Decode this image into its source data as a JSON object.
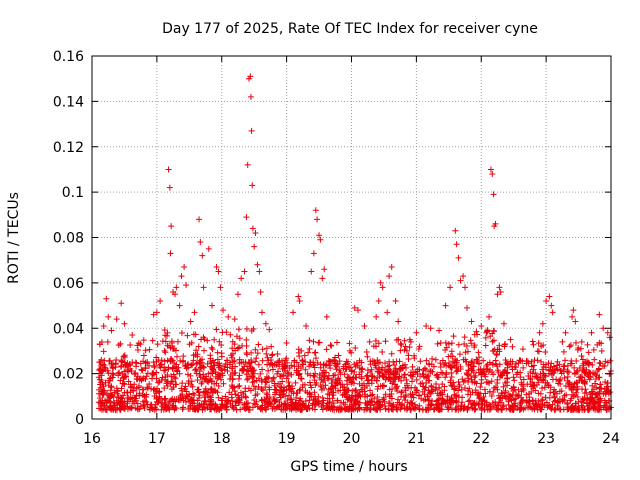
{
  "chart_data": {
    "type": "scatter",
    "title": "Day 177 of 2025, Rate Of TEC Index for receiver cyne",
    "xlabel": "GPS time / hours",
    "ylabel": "ROTI / TECUs",
    "xlim": [
      16,
      24
    ],
    "ylim": [
      0,
      0.16
    ],
    "x_ticks": [
      16,
      17,
      18,
      19,
      20,
      21,
      22,
      23,
      24
    ],
    "y_ticks": [
      0,
      0.02,
      0.04,
      0.06,
      0.08,
      0.1,
      0.12,
      0.14,
      0.16
    ],
    "x_tick_labels": [
      "16",
      "17",
      "18",
      "19",
      "20",
      "21",
      "22",
      "23",
      "24"
    ],
    "y_tick_labels": [
      "0",
      "0.02",
      "0.04",
      "0.06",
      "0.08",
      "0.1",
      "0.12",
      "0.14",
      "0.16"
    ],
    "grid": true,
    "marker": "+",
    "marker_color": "#e8000b",
    "series": [
      {
        "name": "ROTI",
        "note": "dense background cloud of points between 0.003 and ~0.035 TECUs across 16.1-24.0 h is procedurally generated by the script; listed points are the prominent features",
        "points": [
          [
            16.12,
            0.033
          ],
          [
            16.18,
            0.041
          ],
          [
            16.22,
            0.053
          ],
          [
            16.25,
            0.045
          ],
          [
            16.3,
            0.039
          ],
          [
            16.38,
            0.044
          ],
          [
            16.45,
            0.051
          ],
          [
            16.5,
            0.042
          ],
          [
            16.62,
            0.037
          ],
          [
            16.75,
            0.033
          ],
          [
            16.8,
            0.028
          ],
          [
            16.95,
            0.046
          ],
          [
            17.0,
            0.047
          ],
          [
            17.05,
            0.052
          ],
          [
            17.18,
            0.11
          ],
          [
            17.2,
            0.102
          ],
          [
            17.22,
            0.085
          ],
          [
            17.21,
            0.073
          ],
          [
            17.25,
            0.056
          ],
          [
            17.28,
            0.055
          ],
          [
            17.3,
            0.058
          ],
          [
            17.35,
            0.05
          ],
          [
            17.38,
            0.063
          ],
          [
            17.42,
            0.067
          ],
          [
            17.45,
            0.059
          ],
          [
            17.52,
            0.043
          ],
          [
            17.58,
            0.047
          ],
          [
            17.65,
            0.088
          ],
          [
            17.67,
            0.078
          ],
          [
            17.7,
            0.072
          ],
          [
            17.72,
            0.058
          ],
          [
            17.8,
            0.075
          ],
          [
            17.85,
            0.05
          ],
          [
            17.92,
            0.067
          ],
          [
            17.95,
            0.065
          ],
          [
            17.98,
            0.058
          ],
          [
            18.02,
            0.048
          ],
          [
            18.1,
            0.045
          ],
          [
            18.2,
            0.044
          ],
          [
            18.25,
            0.055
          ],
          [
            18.3,
            0.062
          ],
          [
            18.35,
            0.065
          ],
          [
            18.38,
            0.089
          ],
          [
            18.4,
            0.112
          ],
          [
            18.42,
            0.15
          ],
          [
            18.44,
            0.151
          ],
          [
            18.45,
            0.142
          ],
          [
            18.46,
            0.127
          ],
          [
            18.47,
            0.103
          ],
          [
            18.48,
            0.084
          ],
          [
            18.5,
            0.076
          ],
          [
            18.52,
            0.082
          ],
          [
            18.55,
            0.068
          ],
          [
            18.58,
            0.065
          ],
          [
            18.6,
            0.056
          ],
          [
            18.62,
            0.047
          ],
          [
            18.68,
            0.042
          ],
          [
            19.1,
            0.047
          ],
          [
            19.18,
            0.054
          ],
          [
            19.2,
            0.052
          ],
          [
            19.3,
            0.041
          ],
          [
            19.38,
            0.065
          ],
          [
            19.42,
            0.073
          ],
          [
            19.45,
            0.092
          ],
          [
            19.47,
            0.088
          ],
          [
            19.5,
            0.081
          ],
          [
            19.52,
            0.079
          ],
          [
            19.55,
            0.062
          ],
          [
            19.58,
            0.066
          ],
          [
            19.62,
            0.045
          ],
          [
            19.8,
            0.028
          ],
          [
            20.05,
            0.049
          ],
          [
            20.1,
            0.048
          ],
          [
            20.2,
            0.041
          ],
          [
            20.28,
            0.034
          ],
          [
            20.38,
            0.045
          ],
          [
            20.42,
            0.052
          ],
          [
            20.45,
            0.06
          ],
          [
            20.48,
            0.058
          ],
          [
            20.55,
            0.047
          ],
          [
            20.58,
            0.063
          ],
          [
            20.62,
            0.067
          ],
          [
            20.68,
            0.052
          ],
          [
            20.72,
            0.043
          ],
          [
            20.9,
            0.035
          ],
          [
            21.0,
            0.038
          ],
          [
            21.05,
            0.032
          ],
          [
            21.15,
            0.041
          ],
          [
            21.22,
            0.04
          ],
          [
            21.35,
            0.039
          ],
          [
            21.45,
            0.05
          ],
          [
            21.52,
            0.058
          ],
          [
            21.6,
            0.083
          ],
          [
            21.62,
            0.077
          ],
          [
            21.65,
            0.071
          ],
          [
            21.68,
            0.061
          ],
          [
            21.72,
            0.063
          ],
          [
            21.75,
            0.058
          ],
          [
            21.78,
            0.049
          ],
          [
            21.85,
            0.043
          ],
          [
            22.0,
            0.041
          ],
          [
            22.08,
            0.038
          ],
          [
            22.12,
            0.045
          ],
          [
            22.15,
            0.11
          ],
          [
            22.17,
            0.108
          ],
          [
            22.19,
            0.099
          ],
          [
            22.2,
            0.085
          ],
          [
            22.22,
            0.086
          ],
          [
            22.25,
            0.055
          ],
          [
            22.28,
            0.058
          ],
          [
            22.3,
            0.056
          ],
          [
            22.35,
            0.042
          ],
          [
            22.45,
            0.035
          ],
          [
            22.9,
            0.038
          ],
          [
            22.95,
            0.042
          ],
          [
            23.0,
            0.052
          ],
          [
            23.05,
            0.054
          ],
          [
            23.08,
            0.05
          ],
          [
            23.1,
            0.047
          ],
          [
            23.3,
            0.038
          ],
          [
            23.4,
            0.045
          ],
          [
            23.42,
            0.048
          ],
          [
            23.45,
            0.043
          ],
          [
            23.55,
            0.034
          ],
          [
            23.7,
            0.038
          ],
          [
            23.82,
            0.046
          ],
          [
            23.88,
            0.04
          ],
          [
            23.95,
            0.038
          ],
          [
            23.98,
            0.036
          ]
        ]
      }
    ]
  }
}
